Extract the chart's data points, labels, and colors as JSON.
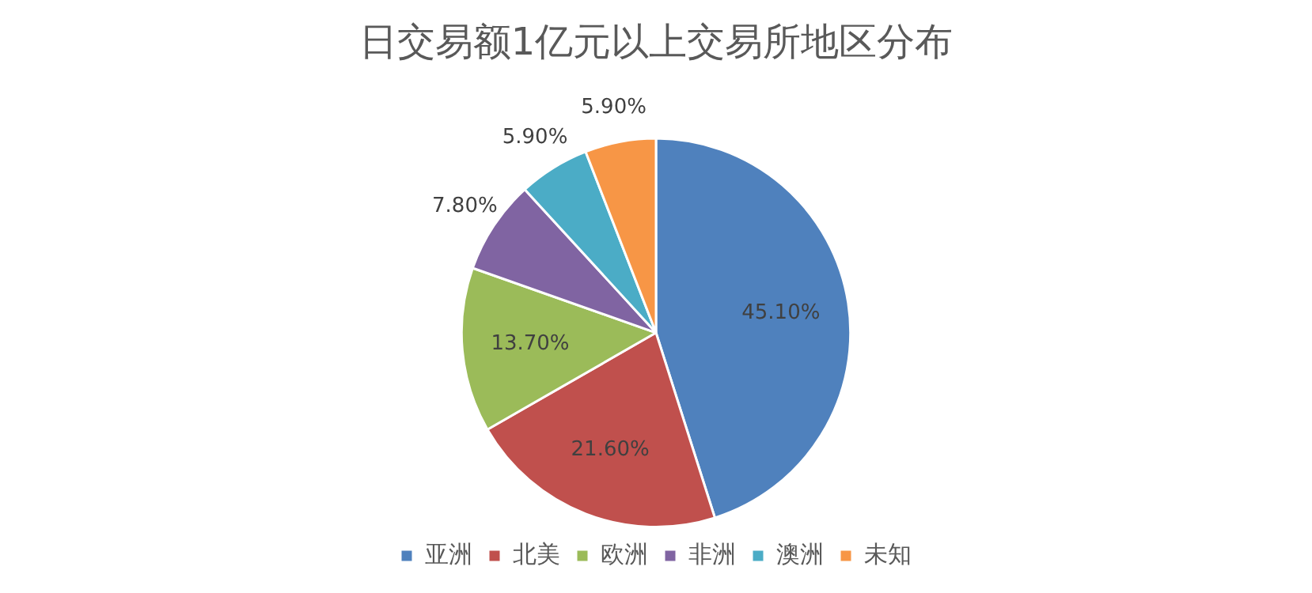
{
  "chart_data": {
    "type": "pie",
    "title": "日交易额1亿元以上交易所地区分布",
    "categories": [
      "亚洲",
      "北美",
      "欧洲",
      "非洲",
      "澳洲",
      "未知"
    ],
    "values": [
      45.1,
      21.6,
      13.7,
      7.8,
      5.9,
      5.9
    ],
    "colors": [
      "#4f81bd",
      "#c0504d",
      "#9bbb59",
      "#8064a2",
      "#4bacc6",
      "#f79646"
    ],
    "value_labels": [
      "45.10%",
      "21.60%",
      "13.70%",
      "7.80%",
      "5.90%",
      "5.90%"
    ],
    "legend": "bottom"
  }
}
